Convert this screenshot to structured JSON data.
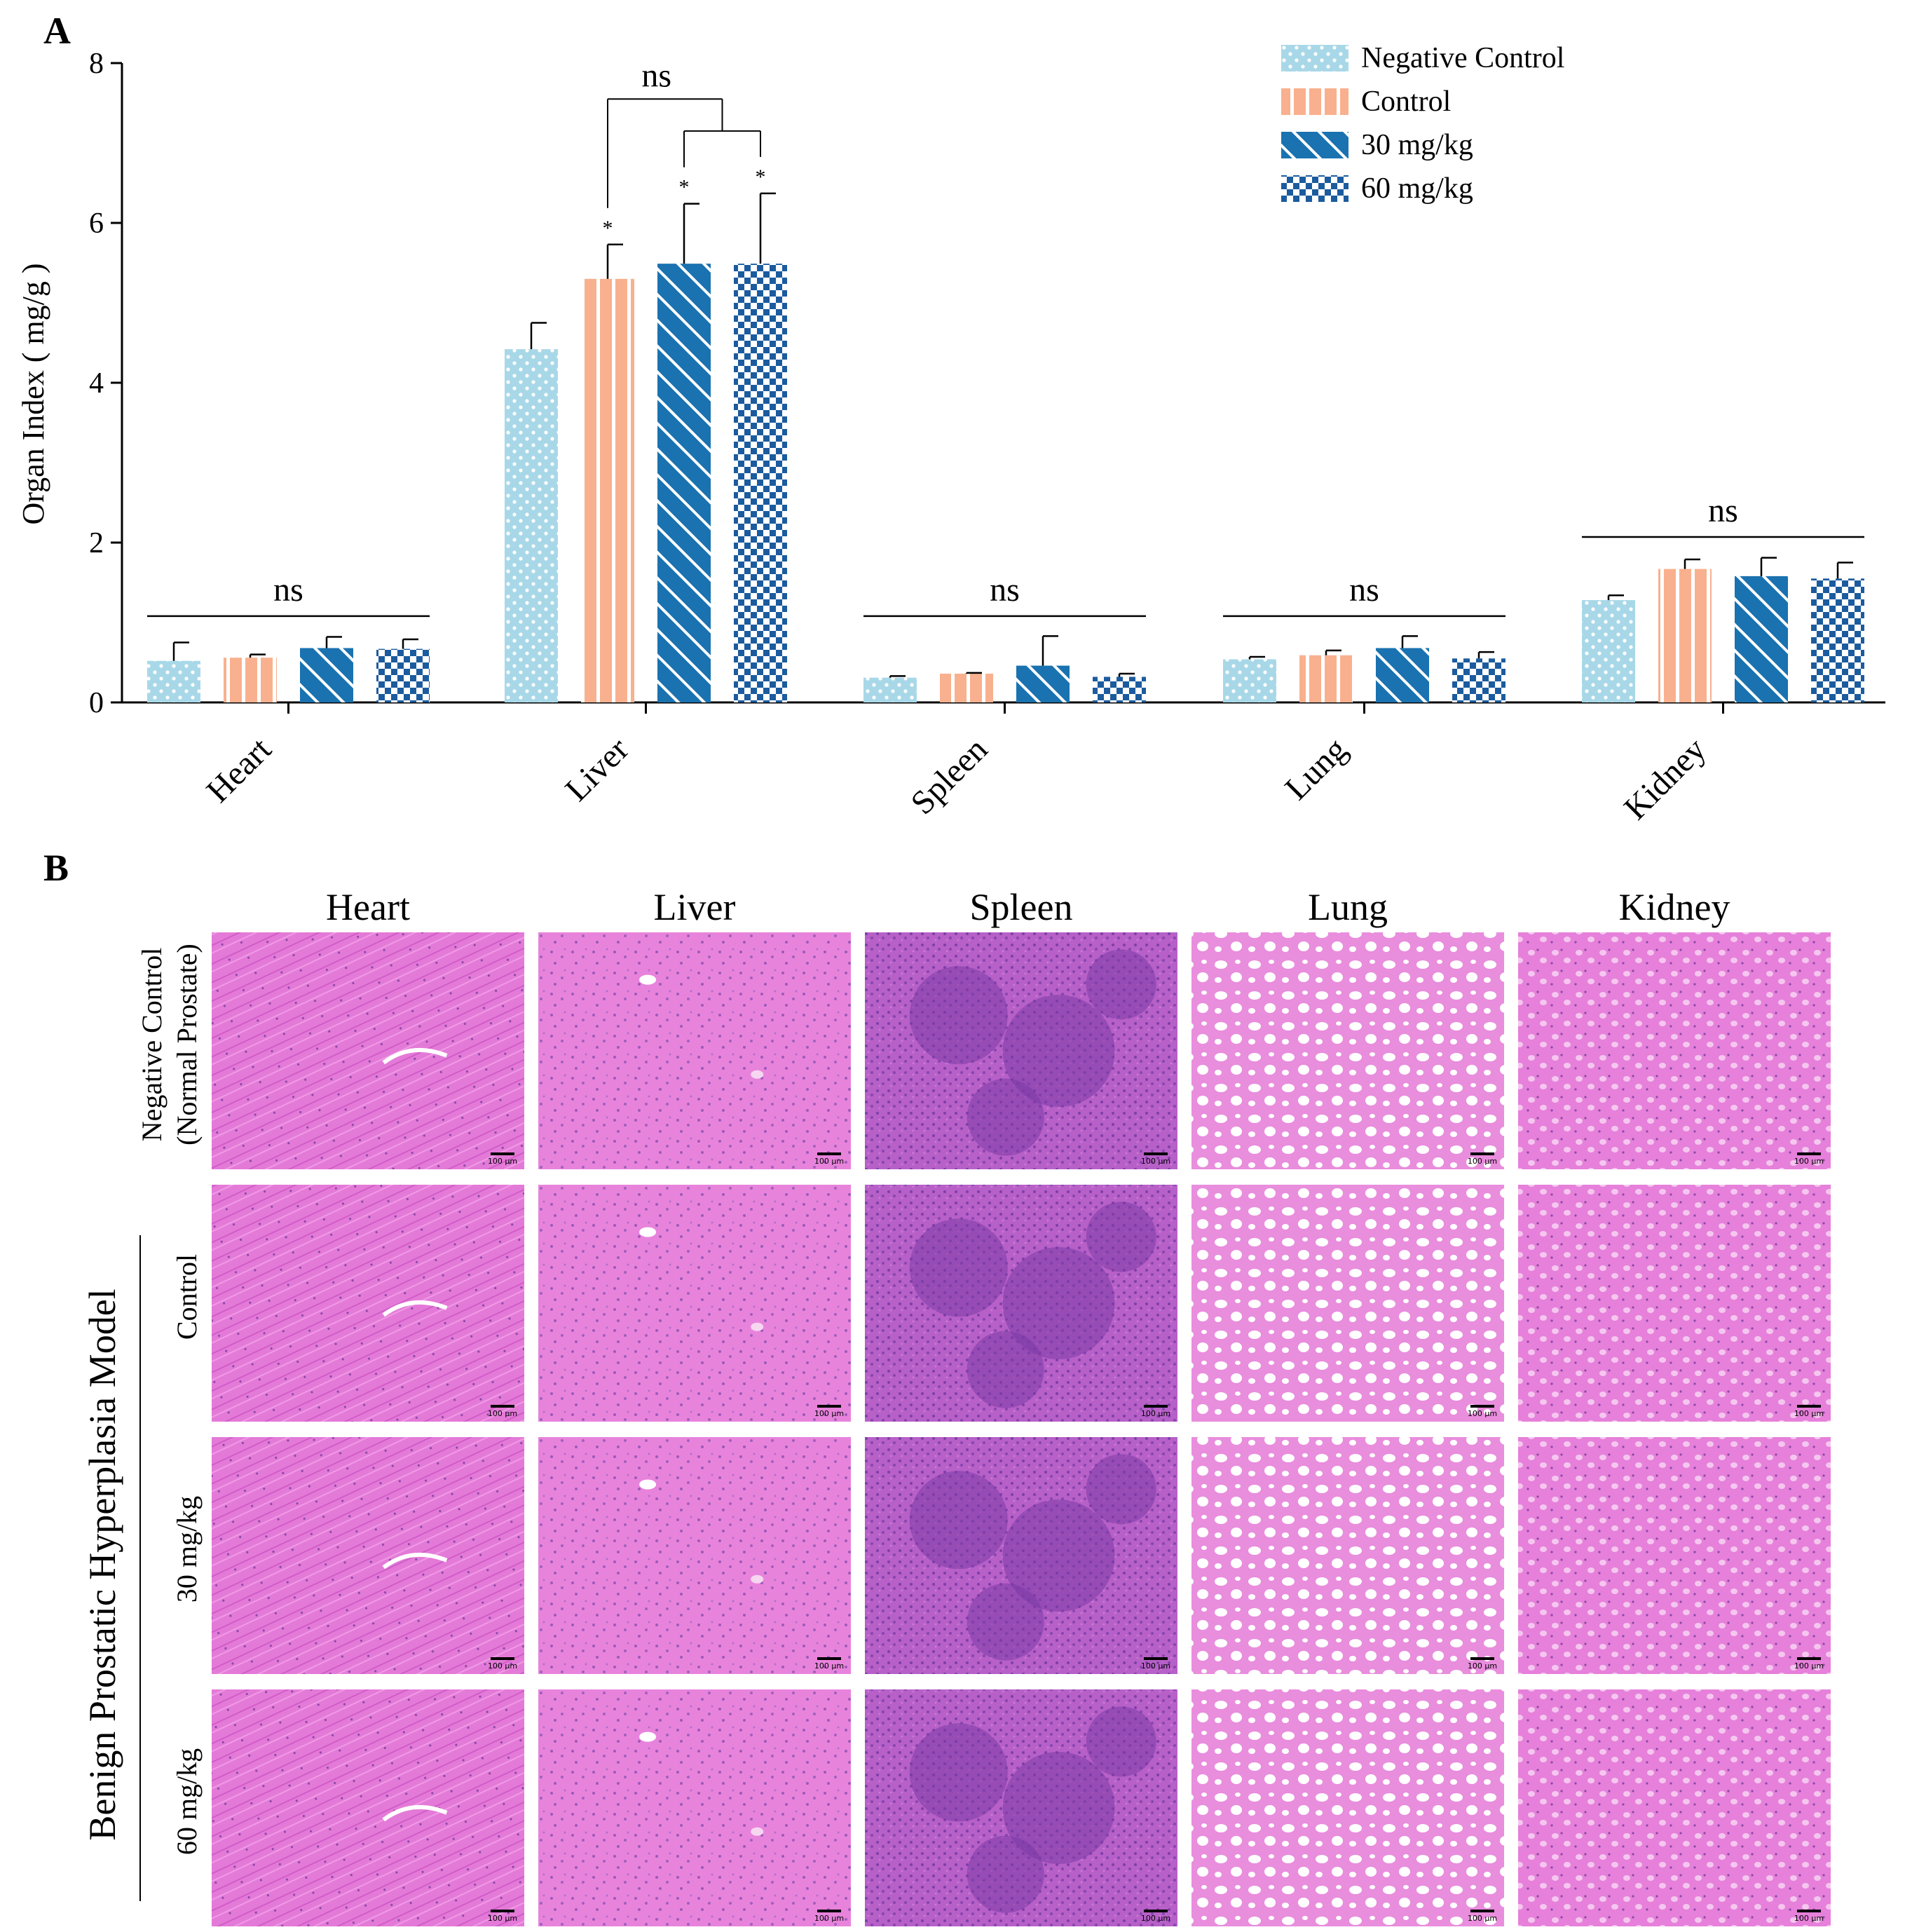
{
  "panel_labels": {
    "a": "A",
    "b": "B"
  },
  "colors": {
    "negative_control": "#a8d8e8",
    "control": "#f9b08e",
    "mg30": "#1a72b0",
    "mg60": "#1b5b9e",
    "he_pink": "#e577d6",
    "he_purple": "#9a55c4"
  },
  "chart_data": {
    "type": "bar",
    "title": "",
    "xlabel": "",
    "ylabel": "Organ Index ( mg/g )",
    "ylim": [
      0,
      8
    ],
    "yticks": [
      "0",
      "2",
      "4",
      "6",
      "8"
    ],
    "categories": [
      "Heart",
      "Liver",
      "Spleen",
      "Lung",
      "Kidney"
    ],
    "legend_position": "top-right",
    "series": [
      {
        "name": "Negative Control",
        "pattern": "dots",
        "values": [
          0.52,
          4.42,
          0.31,
          0.54,
          1.28
        ],
        "errors": [
          0.23,
          0.33,
          0.02,
          0.03,
          0.06
        ],
        "stars": [
          "",
          "",
          "",
          "",
          ""
        ]
      },
      {
        "name": "Control",
        "pattern": "vertical-stripes",
        "values": [
          0.56,
          5.3,
          0.36,
          0.59,
          1.67
        ],
        "errors": [
          0.04,
          0.43,
          0.01,
          0.06,
          0.12
        ],
        "stars": [
          "",
          "*",
          "",
          "",
          ""
        ]
      },
      {
        "name": "30  mg/kg",
        "pattern": "diagonal-stripes",
        "values": [
          0.68,
          5.49,
          0.46,
          0.68,
          1.58
        ],
        "errors": [
          0.14,
          0.75,
          0.37,
          0.15,
          0.23
        ],
        "stars": [
          "",
          "*",
          "",
          "",
          ""
        ]
      },
      {
        "name": "60  mg/kg",
        "pattern": "checker",
        "values": [
          0.67,
          5.49,
          0.32,
          0.55,
          1.55
        ],
        "errors": [
          0.12,
          0.88,
          0.04,
          0.08,
          0.2
        ],
        "stars": [
          "",
          "*",
          "",
          "",
          ""
        ]
      }
    ],
    "annotations": [
      {
        "type": "group-line",
        "category": "Heart",
        "y": 1.08,
        "text": "ns"
      },
      {
        "type": "bracket-liver",
        "y_top": 7.55,
        "y_inner": 7.15,
        "text": "ns"
      },
      {
        "type": "group-line",
        "category": "Spleen",
        "y": 1.08,
        "text": "ns"
      },
      {
        "type": "group-line",
        "category": "Lung",
        "y": 1.08,
        "text": "ns"
      },
      {
        "type": "group-line",
        "category": "Kidney",
        "y": 2.07,
        "text": "ns"
      }
    ]
  },
  "histology": {
    "columns": [
      "Heart",
      "Liver",
      "Spleen",
      "Lung",
      "Kidney"
    ],
    "row_labels": [
      "Negative Control",
      "(Normal Prostate)",
      "Control",
      "30  mg/kg",
      "60  mg/kg"
    ],
    "group_label": "Benign Prostatic Hyperplasia Model",
    "scale_bar": "100 μm"
  }
}
